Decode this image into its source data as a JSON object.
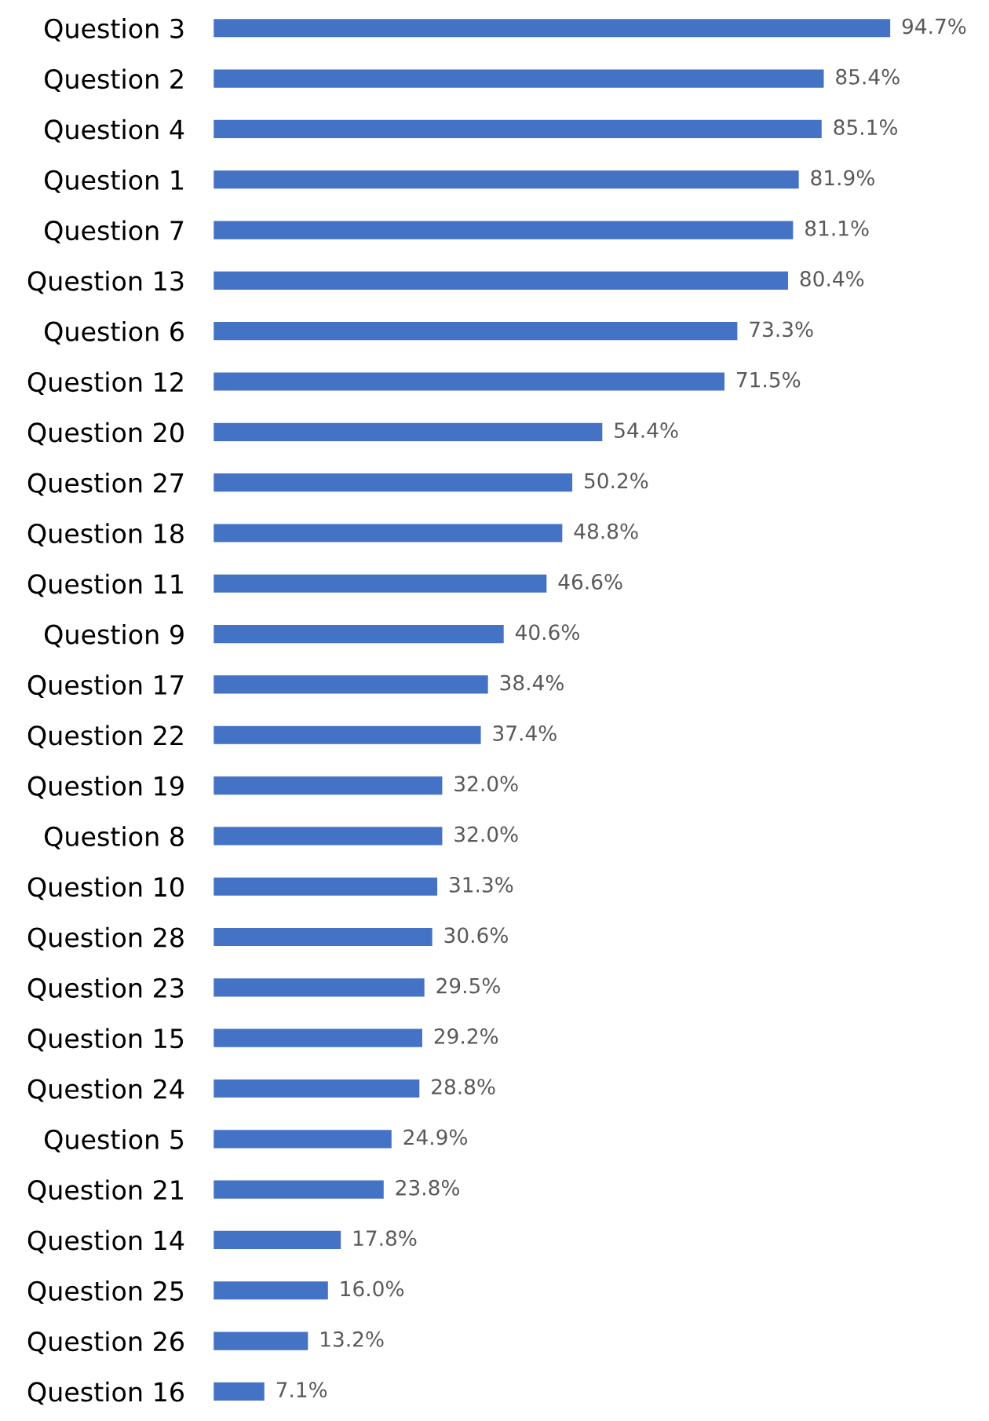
{
  "chart_data": {
    "type": "bar",
    "orientation": "horizontal",
    "categories": [
      "Question 3",
      "Question 2",
      "Question 4",
      "Question 1",
      "Question 7",
      "Question 13",
      "Question 6",
      "Question 12",
      "Question 20",
      "Question 27",
      "Question 18",
      "Question 11",
      "Question 9",
      "Question 17",
      "Question 22",
      "Question 19",
      "Question 8",
      "Question 10",
      "Question 28",
      "Question 23",
      "Question 15",
      "Question 24",
      "Question 5",
      "Question 21",
      "Question 14",
      "Question 25",
      "Question 26",
      "Question 16"
    ],
    "values": [
      94.7,
      85.4,
      85.1,
      81.9,
      81.1,
      80.4,
      73.3,
      71.5,
      54.4,
      50.2,
      48.8,
      46.6,
      40.6,
      38.4,
      37.4,
      32.0,
      32.0,
      31.3,
      30.6,
      29.5,
      29.2,
      28.8,
      24.9,
      23.8,
      17.8,
      16.0,
      13.2,
      7.1
    ],
    "value_labels": [
      "94.7%",
      "85.4%",
      "85.1%",
      "81.9%",
      "81.1%",
      "80.4%",
      "73.3%",
      "71.5%",
      "54.4%",
      "50.2%",
      "48.8%",
      "46.6%",
      "40.6%",
      "38.4%",
      "37.4%",
      "32.0%",
      "32.0%",
      "31.3%",
      "30.6%",
      "29.5%",
      "29.2%",
      "28.8%",
      "24.9%",
      "23.8%",
      "17.8%",
      "16.0%",
      "13.2%",
      "7.1%"
    ],
    "color": "#4472c4",
    "grid": false,
    "legend": false
  }
}
